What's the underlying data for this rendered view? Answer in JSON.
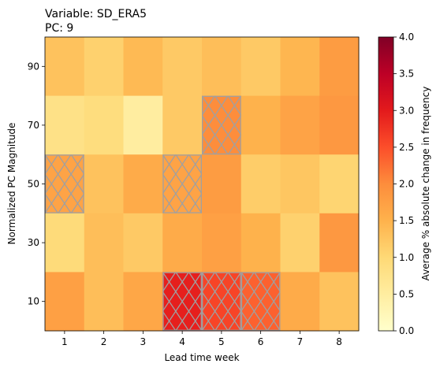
{
  "chart_data": {
    "type": "heatmap",
    "title_lines": [
      "Variable: SD_ERA5",
      "PC: 9"
    ],
    "xlabel": "Lead time week",
    "ylabel": "Normalized PC Magnitude",
    "x_categories": [
      "1",
      "2",
      "3",
      "4",
      "5",
      "6",
      "7",
      "8"
    ],
    "y_categories": [
      "90",
      "70",
      "50",
      "30",
      "10"
    ],
    "values": [
      [
        1.3,
        1.1,
        1.4,
        1.2,
        1.35,
        1.2,
        1.45,
        1.8
      ],
      [
        0.8,
        0.9,
        0.5,
        1.2,
        2.0,
        1.5,
        1.7,
        1.85
      ],
      [
        1.7,
        1.3,
        1.6,
        1.7,
        1.8,
        1.15,
        1.25,
        1.05
      ],
      [
        0.95,
        1.35,
        1.2,
        1.6,
        1.75,
        1.5,
        1.1,
        1.85
      ],
      [
        1.75,
        1.35,
        1.65,
        2.95,
        2.6,
        2.35,
        1.6,
        1.3
      ]
    ],
    "hatched": [
      [
        false,
        false,
        false,
        false,
        false,
        false,
        false,
        false
      ],
      [
        false,
        false,
        false,
        false,
        true,
        false,
        false,
        false
      ],
      [
        true,
        false,
        false,
        true,
        false,
        false,
        false,
        false
      ],
      [
        false,
        false,
        false,
        false,
        false,
        false,
        false,
        false
      ],
      [
        false,
        false,
        false,
        true,
        true,
        true,
        false,
        false
      ]
    ],
    "colorbar": {
      "label": "Average % absolute change in frequency",
      "range": [
        0.0,
        4.0
      ],
      "ticks": [
        "0.0",
        "0.5",
        "1.0",
        "1.5",
        "2.0",
        "2.5",
        "3.0",
        "3.5",
        "4.0"
      ],
      "colormap": "YlOrRd"
    },
    "hatch_color": "#a0a0a0"
  }
}
